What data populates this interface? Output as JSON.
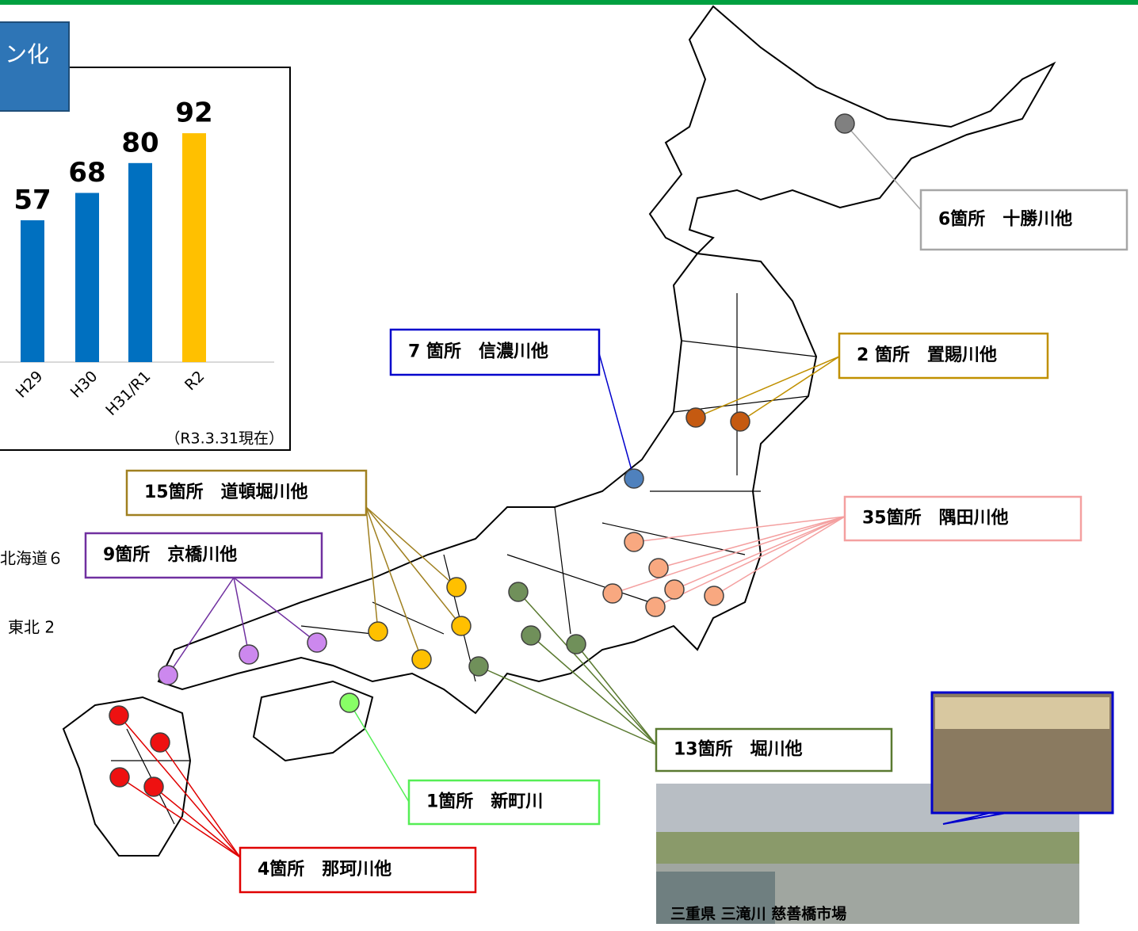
{
  "chart_data": {
    "type": "bar",
    "title": "ン化",
    "categories": [
      "H29",
      "H30",
      "H31/R1",
      "R2"
    ],
    "values": [
      57,
      68,
      80,
      92
    ],
    "colors": [
      "#0070c0",
      "#0070c0",
      "#0070c0",
      "#ffc000"
    ],
    "note": "（R3.3.31現在）"
  },
  "map": {
    "callouts": [
      {
        "label": "6箇所　十勝川他",
        "color": "#a6a6a6",
        "marker": "#808080"
      },
      {
        "label": "7 箇所　信濃川他",
        "color": "#0000cc",
        "marker": "#4f81bd"
      },
      {
        "label": "2 箇所　置賜川他",
        "color": "#c09000",
        "marker": "#c55a11"
      },
      {
        "label": "35箇所　隅田川他",
        "color": "#f4a0a0",
        "marker": "#f8a880"
      },
      {
        "label": "15箇所　道頓堀川他",
        "color": "#a08020",
        "marker": "#ffc000"
      },
      {
        "label": "9箇所　京橋川他",
        "color": "#7030a0",
        "marker": "#cc88ee"
      },
      {
        "label": "13箇所　堀川他",
        "color": "#5a7a30",
        "marker": "#70905a"
      },
      {
        "label": "1箇所　新町川",
        "color": "#55ee55",
        "marker": "#88ff66"
      },
      {
        "label": "4箇所　那珂川他",
        "color": "#e00000",
        "marker": "#ee1111"
      }
    ],
    "region_labels": [
      "北海道６",
      "東北 2"
    ],
    "photo_caption": "三重県 三滝川 慈善橋市場"
  }
}
